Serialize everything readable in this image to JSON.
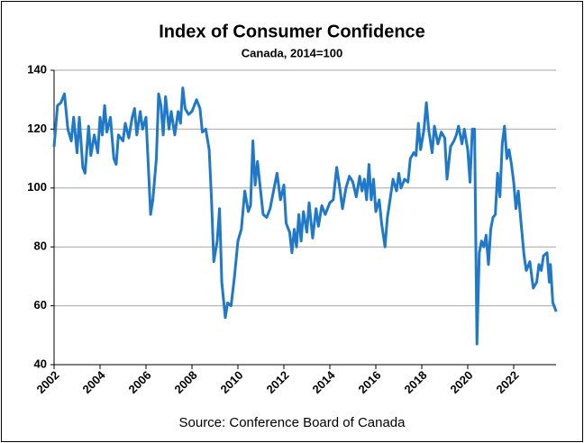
{
  "chart_data": {
    "type": "line",
    "title": "Index of Consumer Confidence",
    "subtitle": "Canada, 2014=100",
    "source": "Source: Conference Board of Canada",
    "color": "#1f78c8",
    "grid": true,
    "xlim": [
      2002,
      2024
    ],
    "xticks": [
      2002,
      2004,
      2006,
      2008,
      2010,
      2012,
      2014,
      2016,
      2018,
      2020,
      2022
    ],
    "ylim": [
      40,
      140
    ],
    "yticks": [
      40,
      60,
      80,
      100,
      120,
      140
    ],
    "x": [
      2002.0,
      2002.15,
      2002.3,
      2002.45,
      2002.6,
      2002.75,
      2002.85,
      2003.0,
      2003.1,
      2003.25,
      2003.35,
      2003.5,
      2003.6,
      2003.75,
      2003.9,
      2004.0,
      2004.1,
      2004.2,
      2004.3,
      2004.45,
      2004.6,
      2004.7,
      2004.8,
      2005.0,
      2005.1,
      2005.25,
      2005.4,
      2005.5,
      2005.6,
      2005.75,
      2005.85,
      2006.0,
      2006.1,
      2006.2,
      2006.3,
      2006.45,
      2006.55,
      2006.65,
      2006.75,
      2006.85,
      2007.0,
      2007.1,
      2007.25,
      2007.4,
      2007.5,
      2007.6,
      2007.7,
      2007.85,
      2008.0,
      2008.2,
      2008.35,
      2008.45,
      2008.6,
      2008.75,
      2008.85,
      2008.95,
      2009.1,
      2009.2,
      2009.3,
      2009.45,
      2009.55,
      2009.7,
      2009.85,
      2010.0,
      2010.15,
      2010.3,
      2010.45,
      2010.55,
      2010.65,
      2010.75,
      2010.85,
      2011.0,
      2011.1,
      2011.25,
      2011.4,
      2011.55,
      2011.7,
      2011.85,
      2012.0,
      2012.1,
      2012.25,
      2012.35,
      2012.45,
      2012.55,
      2012.65,
      2012.75,
      2012.85,
      2013.0,
      2013.1,
      2013.25,
      2013.4,
      2013.5,
      2013.65,
      2013.8,
      2014.0,
      2014.15,
      2014.3,
      2014.45,
      2014.55,
      2014.7,
      2014.85,
      2015.0,
      2015.15,
      2015.3,
      2015.4,
      2015.5,
      2015.6,
      2015.7,
      2015.8,
      2015.9,
      2016.0,
      2016.15,
      2016.25,
      2016.4,
      2016.5,
      2016.6,
      2016.75,
      2016.9,
      2017.0,
      2017.1,
      2017.25,
      2017.4,
      2017.5,
      2017.65,
      2017.75,
      2017.85,
      2017.95,
      2018.1,
      2018.2,
      2018.3,
      2018.45,
      2018.55,
      2018.7,
      2018.85,
      2019.0,
      2019.1,
      2019.25,
      2019.4,
      2019.5,
      2019.6,
      2019.75,
      2019.85,
      2020.0,
      2020.1,
      2020.2,
      2020.3,
      2020.4,
      2020.5,
      2020.6,
      2020.7,
      2020.8,
      2020.9,
      2021.0,
      2021.1,
      2021.2,
      2021.3,
      2021.4,
      2021.5,
      2021.6,
      2021.7,
      2021.8,
      2021.9,
      2022.0,
      2022.1,
      2022.2,
      2022.3,
      2022.45,
      2022.55,
      2022.7,
      2022.85,
      2023.0,
      2023.1,
      2023.2,
      2023.3,
      2023.45,
      2023.55,
      2023.6,
      2023.7,
      2023.85
    ],
    "values": [
      114,
      128,
      129,
      132,
      120,
      116,
      124,
      112,
      124,
      107,
      105,
      121,
      111,
      118,
      112,
      124,
      118,
      128,
      119,
      124,
      110,
      108,
      118,
      116,
      122,
      117,
      124,
      127,
      118,
      126,
      120,
      124,
      108,
      91,
      96,
      110,
      132,
      128,
      118,
      131,
      120,
      126,
      118,
      126,
      122,
      134,
      127,
      125,
      126,
      130,
      127,
      119,
      120,
      113,
      96,
      75,
      82,
      93,
      68,
      56,
      61,
      60,
      70,
      82,
      86,
      99,
      92,
      94,
      116,
      101,
      109,
      98,
      91,
      90,
      93,
      99,
      105,
      96,
      101,
      88,
      85,
      78,
      86,
      80,
      91,
      82,
      92,
      85,
      95,
      83,
      93,
      87,
      94,
      91,
      95,
      96,
      107,
      99,
      93,
      100,
      104,
      102,
      97,
      104,
      99,
      103,
      96,
      108,
      96,
      103,
      92,
      96,
      88,
      80,
      90,
      95,
      103,
      99,
      105,
      100,
      103,
      102,
      110,
      112,
      111,
      122,
      113,
      120,
      129,
      120,
      112,
      121,
      115,
      119,
      117,
      103,
      114,
      116,
      118,
      121,
      115,
      120,
      113,
      102,
      120,
      120,
      47,
      78,
      82,
      80,
      84,
      74,
      86,
      90,
      91,
      105,
      97,
      115,
      121,
      110,
      113,
      108,
      102,
      93,
      99,
      90,
      77,
      72,
      75,
      66,
      68,
      74,
      72,
      77,
      78,
      68,
      74,
      61,
      58
    ]
  }
}
